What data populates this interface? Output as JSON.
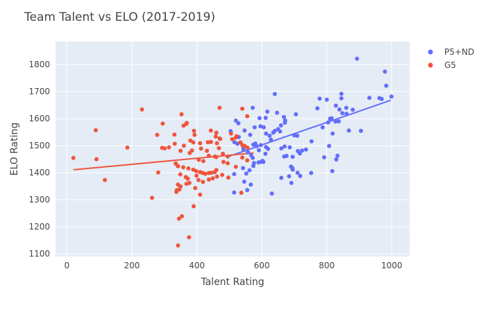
{
  "chart_data": {
    "type": "scatter",
    "title": "Team Talent vs ELO  (2017-2019)",
    "xlabel": "Talent Rating",
    "ylabel": "ELO Rating",
    "xlim": [
      -35,
      1055
    ],
    "ylim": [
      1090,
      1885
    ],
    "xticks": [
      0,
      200,
      400,
      600,
      800,
      1000
    ],
    "yticks": [
      1100,
      1200,
      1300,
      1400,
      1500,
      1600,
      1700,
      1800
    ],
    "grid": true,
    "legend_position": "top-right",
    "series": [
      {
        "name": "P5+ND",
        "color": "#636efa",
        "trendline": [
          [
            500,
            1461
          ],
          [
            997,
            1668
          ]
        ],
        "points": [
          [
            893,
            1822
          ],
          [
            979,
            1774
          ],
          [
            983,
            1722
          ],
          [
            640,
            1691
          ],
          [
            845,
            1692
          ],
          [
            999,
            1682
          ],
          [
            962,
            1676
          ],
          [
            931,
            1677
          ],
          [
            969,
            1673
          ],
          [
            778,
            1674
          ],
          [
            800,
            1670
          ],
          [
            845,
            1675
          ],
          [
            828,
            1648
          ],
          [
            860,
            1640
          ],
          [
            771,
            1638
          ],
          [
            839,
            1634
          ],
          [
            848,
            1620
          ],
          [
            880,
            1633
          ],
          [
            861,
            1618
          ],
          [
            572,
            1640
          ],
          [
            617,
            1626
          ],
          [
            647,
            1622
          ],
          [
            668,
            1606
          ],
          [
            705,
            1616
          ],
          [
            810,
            1600
          ],
          [
            815,
            1601
          ],
          [
            804,
            1586
          ],
          [
            837,
            1590
          ],
          [
            827,
            1589
          ],
          [
            593,
            1602
          ],
          [
            612,
            1603
          ],
          [
            520,
            1593
          ],
          [
            528,
            1583
          ],
          [
            596,
            1572
          ],
          [
            578,
            1568
          ],
          [
            606,
            1568
          ],
          [
            650,
            1561
          ],
          [
            672,
            1593
          ],
          [
            671,
            1585
          ],
          [
            659,
            1575
          ],
          [
            547,
            1556
          ],
          [
            564,
            1540
          ],
          [
            640,
            1555
          ],
          [
            656,
            1553
          ],
          [
            635,
            1548
          ],
          [
            624,
            1537
          ],
          [
            613,
            1545
          ],
          [
            628,
            1522
          ],
          [
            700,
            1538
          ],
          [
            709,
            1537
          ],
          [
            787,
            1568
          ],
          [
            868,
            1556
          ],
          [
            905,
            1555
          ],
          [
            753,
            1516
          ],
          [
            807,
            1499
          ],
          [
            818,
            1545
          ],
          [
            529,
            1532
          ],
          [
            525,
            1507
          ],
          [
            574,
            1504
          ],
          [
            580,
            1508
          ],
          [
            584,
            1498
          ],
          [
            597,
            1502
          ],
          [
            613,
            1495
          ],
          [
            619,
            1488
          ],
          [
            543,
            1493
          ],
          [
            544,
            1484
          ],
          [
            557,
            1476
          ],
          [
            567,
            1465
          ],
          [
            572,
            1455
          ],
          [
            591,
            1483
          ],
          [
            611,
            1470
          ],
          [
            660,
            1490
          ],
          [
            670,
            1497
          ],
          [
            686,
            1494
          ],
          [
            676,
            1462
          ],
          [
            717,
            1471
          ],
          [
            736,
            1486
          ],
          [
            711,
            1480
          ],
          [
            724,
            1482
          ],
          [
            695,
            1459
          ],
          [
            669,
            1460
          ],
          [
            576,
            1436
          ],
          [
            590,
            1438
          ],
          [
            602,
            1444
          ],
          [
            605,
            1440
          ],
          [
            542,
            1417
          ],
          [
            562,
            1409
          ],
          [
            574,
            1425
          ],
          [
            598,
            1440
          ],
          [
            690,
            1423
          ],
          [
            694,
            1417
          ],
          [
            695,
            1411
          ],
          [
            710,
            1400
          ],
          [
            752,
            1399
          ],
          [
            792,
            1457
          ],
          [
            829,
            1449
          ],
          [
            833,
            1463
          ],
          [
            817,
            1406
          ],
          [
            552,
            1397
          ],
          [
            504,
            1554
          ],
          [
            516,
            1513
          ],
          [
            515,
            1395
          ],
          [
            515,
            1327
          ],
          [
            555,
            1336
          ],
          [
            546,
            1367
          ],
          [
            566,
            1356
          ],
          [
            631,
            1323
          ],
          [
            684,
            1387
          ],
          [
            691,
            1362
          ],
          [
            660,
            1381
          ],
          [
            718,
            1388
          ]
        ]
      },
      {
        "name": "G5",
        "color": "#ef553b",
        "trendline": [
          [
            20,
            1411
          ],
          [
            575,
            1473
          ]
        ],
        "points": [
          [
            231,
            1634
          ],
          [
            470,
            1640
          ],
          [
            540,
            1637
          ],
          [
            353,
            1616
          ],
          [
            555,
            1609
          ],
          [
            359,
            1574
          ],
          [
            367,
            1580
          ],
          [
            369,
            1584
          ],
          [
            295,
            1582
          ],
          [
            278,
            1540
          ],
          [
            331,
            1541
          ],
          [
            391,
            1555
          ],
          [
            443,
            1556
          ],
          [
            458,
            1534
          ],
          [
            460,
            1548
          ],
          [
            470,
            1527
          ],
          [
            472,
            1525
          ],
          [
            509,
            1524
          ],
          [
            520,
            1530
          ],
          [
            534,
            1512
          ],
          [
            540,
            1503
          ],
          [
            548,
            1498
          ],
          [
            556,
            1493
          ],
          [
            89,
            1557
          ],
          [
            186,
            1493
          ],
          [
            293,
            1492
          ],
          [
            301,
            1490
          ],
          [
            393,
            1540
          ],
          [
            380,
            1519
          ],
          [
            389,
            1512
          ],
          [
            410,
            1509
          ],
          [
            434,
            1513
          ],
          [
            443,
            1514
          ],
          [
            462,
            1509
          ],
          [
            350,
            1481
          ],
          [
            378,
            1473
          ],
          [
            385,
            1482
          ],
          [
            413,
            1489
          ],
          [
            431,
            1481
          ],
          [
            468,
            1491
          ],
          [
            480,
            1470
          ],
          [
            495,
            1460
          ],
          [
            540,
            1456
          ],
          [
            555,
            1446
          ],
          [
            20,
            1455
          ],
          [
            91,
            1450
          ],
          [
            437,
            1463
          ],
          [
            455,
            1460
          ],
          [
            460,
            1458
          ],
          [
            406,
            1448
          ],
          [
            420,
            1443
          ],
          [
            335,
            1434
          ],
          [
            336,
            1433
          ],
          [
            342,
            1424
          ],
          [
            358,
            1420
          ],
          [
            374,
            1416
          ],
          [
            389,
            1411
          ],
          [
            398,
            1406
          ],
          [
            410,
            1402
          ],
          [
            418,
            1399
          ],
          [
            426,
            1396
          ],
          [
            437,
            1399
          ],
          [
            445,
            1400
          ],
          [
            455,
            1402
          ],
          [
            462,
            1386
          ],
          [
            478,
            1392
          ],
          [
            497,
            1382
          ],
          [
            117,
            1373
          ],
          [
            281,
            1401
          ],
          [
            349,
            1394
          ],
          [
            366,
            1384
          ],
          [
            372,
            1378
          ],
          [
            399,
            1389
          ],
          [
            405,
            1373
          ],
          [
            419,
            1366
          ],
          [
            437,
            1375
          ],
          [
            449,
            1379
          ],
          [
            377,
            1362
          ],
          [
            368,
            1359
          ],
          [
            342,
            1356
          ],
          [
            350,
            1349
          ],
          [
            395,
            1343
          ],
          [
            346,
            1338
          ],
          [
            338,
            1335
          ],
          [
            337,
            1329
          ],
          [
            410,
            1319
          ],
          [
            537,
            1326
          ],
          [
            262,
            1307
          ],
          [
            390,
            1276
          ],
          [
            345,
            1230
          ],
          [
            354,
            1239
          ],
          [
            376,
            1161
          ],
          [
            342,
            1131
          ],
          [
            460,
            1410
          ],
          [
            482,
            1440
          ],
          [
            495,
            1435
          ],
          [
            520,
            1422
          ],
          [
            505,
            1545
          ],
          [
            522,
            1535
          ],
          [
            360,
            1500
          ],
          [
            314,
            1494
          ],
          [
            332,
            1507
          ]
        ]
      }
    ]
  }
}
